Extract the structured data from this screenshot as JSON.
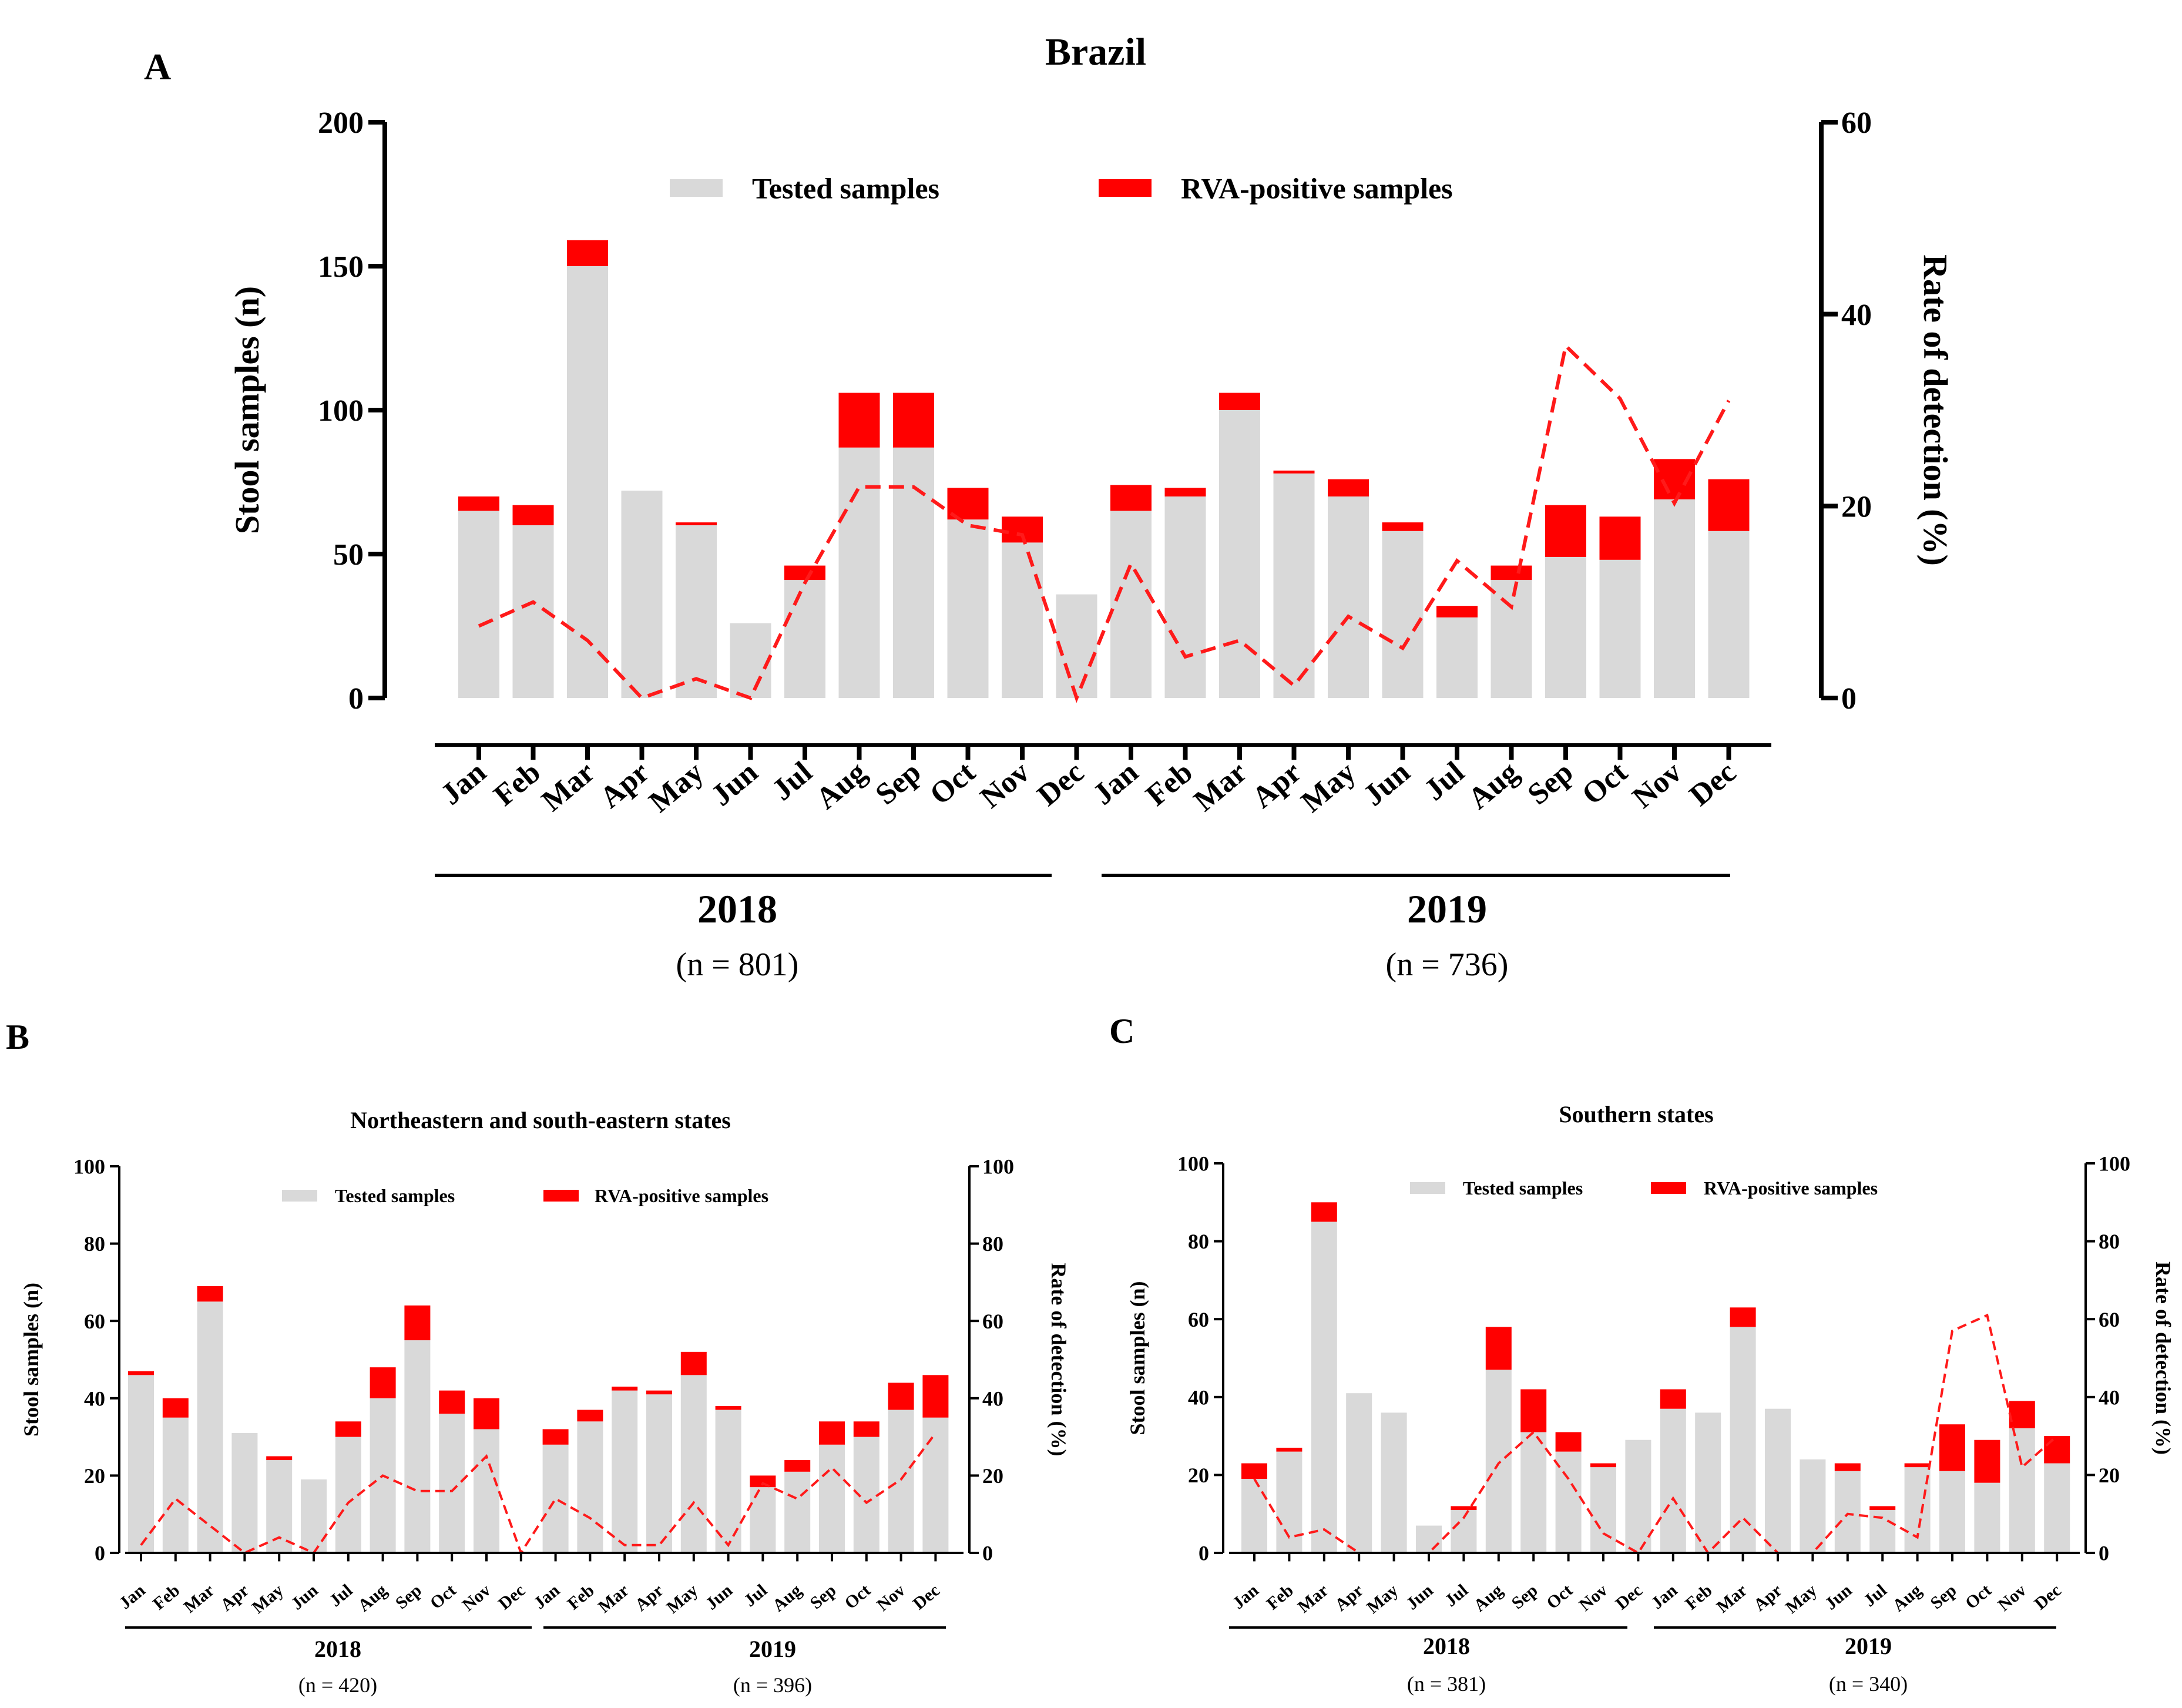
{
  "colors": {
    "tested": "#d9d9d9",
    "positive": "#ff0000",
    "rate_line": "#ff1a1a",
    "axis": "#000000"
  },
  "chart_data": [
    {
      "panel": "A",
      "type": "bar",
      "title": "Brazil",
      "ylabel": "Stool samples (n)",
      "y2label": "Rate of detection (%)",
      "ylim": [
        0,
        200
      ],
      "y2lim": [
        0,
        60
      ],
      "yticks": [
        "0",
        "50",
        "100",
        "150",
        "200"
      ],
      "y2ticks": [
        "0",
        "20",
        "40",
        "60"
      ],
      "legend": [
        "Tested samples",
        "RVA-positive samples"
      ],
      "categories": [
        "Jan",
        "Feb",
        "Mar",
        "Apr",
        "May",
        "Jun",
        "Jul",
        "Aug",
        "Sep",
        "Oct",
        "Nov",
        "Dec",
        "Jan",
        "Feb",
        "Mar",
        "Apr",
        "May",
        "Jun",
        "Jul",
        "Aug",
        "Sep",
        "Oct",
        "Nov",
        "Dec"
      ],
      "groups": [
        {
          "year": "2018",
          "n_label": "(n = 801)",
          "months": 12
        },
        {
          "year": "2019",
          "n_label": "(n = 736)",
          "months": 12
        }
      ],
      "series": [
        {
          "name": "Tested samples",
          "stack": "bar",
          "values": [
            65,
            60,
            150,
            72,
            60,
            26,
            41,
            87,
            87,
            62,
            54,
            36,
            65,
            70,
            100,
            78,
            70,
            58,
            28,
            41,
            49,
            48,
            69,
            58
          ]
        },
        {
          "name": "RVA-positive samples",
          "stack": "bar",
          "values": [
            5,
            7,
            9,
            0,
            1,
            0,
            5,
            19,
            19,
            11,
            9,
            0,
            9,
            3,
            6,
            1,
            6,
            3,
            4,
            5,
            18,
            15,
            14,
            18
          ]
        },
        {
          "name": "Rate of detection (%)",
          "axis": "y2",
          "type": "line",
          "style": "dashed",
          "values": [
            7.5,
            10,
            6,
            0,
            2,
            0,
            12,
            22,
            22,
            18,
            17,
            0,
            14,
            4.3,
            6,
            1.3,
            8.5,
            5.2,
            14.3,
            9.5,
            36.7,
            31.2,
            20.3,
            31
          ]
        }
      ]
    },
    {
      "panel": "B",
      "type": "bar",
      "title": "Northeastern and south-eastern states",
      "ylabel": "Stool samples (n)",
      "y2label": "Rate of detection (%)",
      "ylim": [
        0,
        100
      ],
      "y2lim": [
        0,
        100
      ],
      "yticks": [
        "0",
        "20",
        "40",
        "60",
        "80",
        "100"
      ],
      "y2ticks": [
        "0",
        "20",
        "40",
        "60",
        "80",
        "100"
      ],
      "legend": [
        "Tested samples",
        "RVA-positive samples"
      ],
      "categories": [
        "Jan",
        "Feb",
        "Mar",
        "Apr",
        "May",
        "Jun",
        "Jul",
        "Aug",
        "Sep",
        "Oct",
        "Nov",
        "Dec",
        "Jan",
        "Feb",
        "Mar",
        "Apr",
        "May",
        "Jun",
        "Jul",
        "Aug",
        "Sep",
        "Oct",
        "Nov",
        "Dec"
      ],
      "groups": [
        {
          "year": "2018",
          "n_label": "(n = 420)",
          "months": 12
        },
        {
          "year": "2019",
          "n_label": "(n = 396)",
          "months": 12
        }
      ],
      "series": [
        {
          "name": "Tested samples",
          "stack": "bar",
          "values": [
            46,
            35,
            65,
            31,
            24,
            19,
            30,
            40,
            55,
            36,
            32,
            0,
            28,
            34,
            42,
            41,
            46,
            37,
            17,
            21,
            28,
            30,
            37,
            35
          ]
        },
        {
          "name": "RVA-positive samples",
          "stack": "bar",
          "values": [
            1,
            5,
            4,
            0,
            1,
            0,
            4,
            8,
            9,
            6,
            8,
            0,
            4,
            3,
            1,
            1,
            6,
            1,
            3,
            3,
            6,
            4,
            7,
            11
          ]
        },
        {
          "name": "Rate of detection (%)",
          "axis": "y2",
          "type": "line",
          "style": "dashed",
          "values": [
            2,
            14,
            7,
            0,
            4,
            0,
            13,
            20,
            16,
            16,
            25,
            0,
            14,
            9,
            2,
            2,
            13,
            2,
            18,
            14,
            22,
            13,
            19,
            31
          ]
        }
      ]
    },
    {
      "panel": "C",
      "type": "bar",
      "title": "Southern states",
      "ylabel": "Stool samples (n)",
      "y2label": "Rate of detection (%)",
      "ylim": [
        0,
        100
      ],
      "y2lim": [
        0,
        100
      ],
      "yticks": [
        "0",
        "20",
        "40",
        "60",
        "80",
        "100"
      ],
      "y2ticks": [
        "0",
        "20",
        "40",
        "60",
        "80",
        "100"
      ],
      "legend": [
        "Tested samples",
        "RVA-positive samples"
      ],
      "categories": [
        "Jan",
        "Feb",
        "Mar",
        "Apr",
        "May",
        "Jun",
        "Jul",
        "Aug",
        "Sep",
        "Oct",
        "Nov",
        "Dec",
        "Jan",
        "Feb",
        "Mar",
        "Apr",
        "May",
        "Jun",
        "Jul",
        "Aug",
        "Sep",
        "Oct",
        "Nov",
        "Dec"
      ],
      "groups": [
        {
          "year": "2018",
          "n_label": "(n = 381)",
          "months": 12
        },
        {
          "year": "2019",
          "n_label": "(n = 340)",
          "months": 12
        }
      ],
      "series": [
        {
          "name": "Tested samples",
          "stack": "bar",
          "values": [
            19,
            26,
            85,
            41,
            36,
            7,
            11,
            47,
            31,
            26,
            22,
            29,
            37,
            36,
            58,
            37,
            24,
            21,
            11,
            22,
            21,
            18,
            32,
            23
          ]
        },
        {
          "name": "RVA-positive samples",
          "stack": "bar",
          "values": [
            4,
            1,
            5,
            0,
            0,
            0,
            1,
            11,
            11,
            5,
            1,
            0,
            5,
            0,
            5,
            0,
            0,
            2,
            1,
            1,
            12,
            11,
            7,
            7
          ]
        },
        {
          "name": "Rate of detection (%)",
          "axis": "y2",
          "type": "line",
          "style": "dashed",
          "values": [
            19,
            4,
            6,
            0,
            0,
            0,
            9,
            23,
            31,
            19,
            5,
            0,
            14,
            0,
            9,
            0,
            0,
            10,
            9,
            4,
            57,
            61,
            22,
            30
          ]
        }
      ]
    }
  ]
}
